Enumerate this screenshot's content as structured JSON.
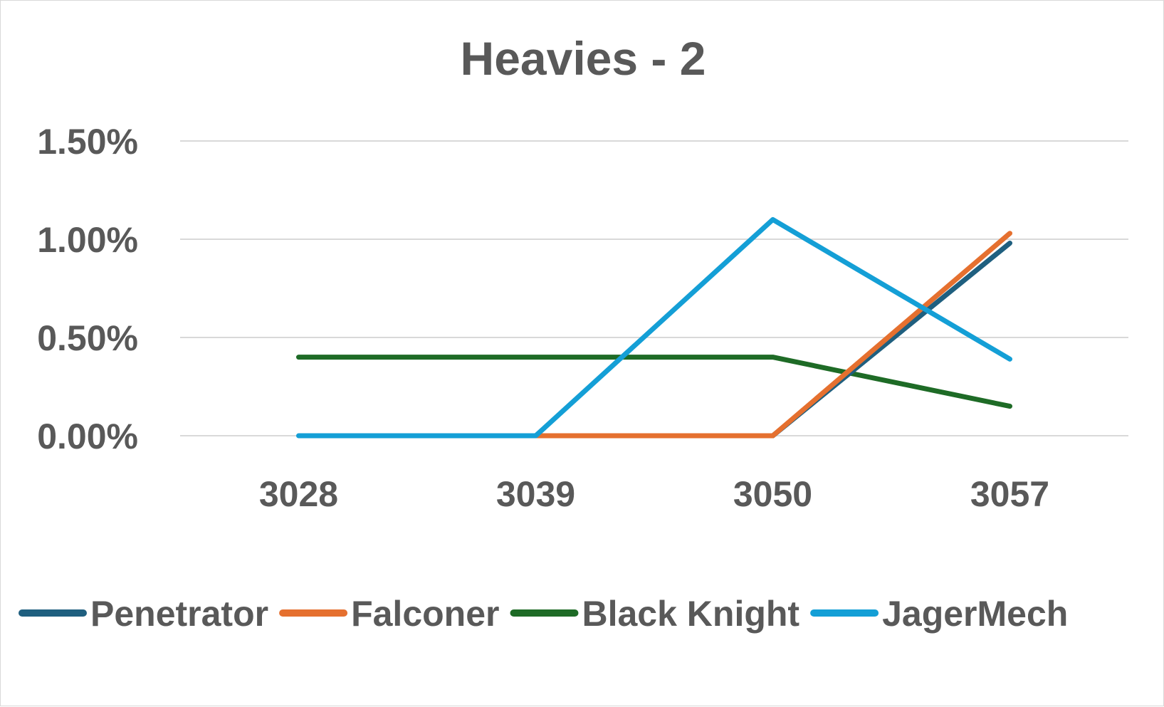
{
  "chart_data": {
    "type": "line",
    "title": "Heavies - 2",
    "xlabel": "",
    "ylabel": "",
    "categories": [
      "3028",
      "3039",
      "3050",
      "3057"
    ],
    "y_ticks": [
      0,
      0.5,
      1.0,
      1.5
    ],
    "y_tick_labels": [
      "0.00%",
      "0.50%",
      "1.00%",
      "1.50%"
    ],
    "ylim": [
      0,
      1.5
    ],
    "grid": true,
    "legend_position": "bottom",
    "series": [
      {
        "name": "Penetrator",
        "color": "#1f5f7f",
        "values": [
          null,
          0,
          0,
          0.98
        ]
      },
      {
        "name": "Falconer",
        "color": "#e5702f",
        "values": [
          null,
          0,
          0,
          1.03
        ]
      },
      {
        "name": "Black Knight",
        "color": "#1e6b26",
        "values": [
          0.4,
          0.4,
          0.4,
          0.15
        ]
      },
      {
        "name": "JagerMech",
        "color": "#149fd6",
        "values": [
          0,
          0,
          1.1,
          0.39
        ]
      }
    ]
  }
}
